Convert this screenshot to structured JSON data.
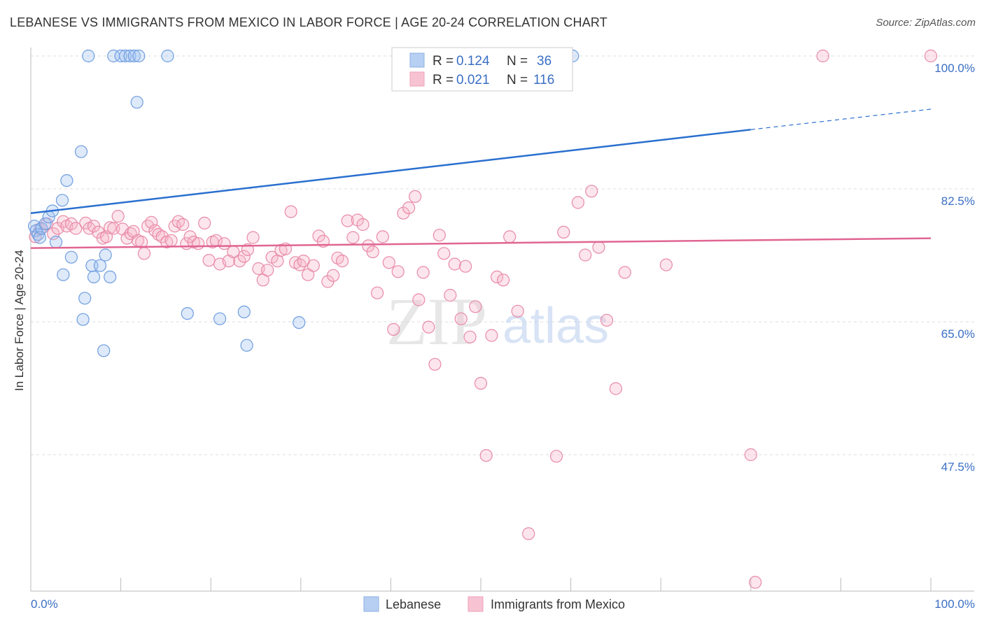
{
  "title": "LEBANESE VS IMMIGRANTS FROM MEXICO IN LABOR FORCE | AGE 20-24 CORRELATION CHART",
  "source": "Source: ZipAtlas.com",
  "watermark": {
    "zip": "ZIP",
    "atlas": "atlas"
  },
  "colors": {
    "lebanese": "#6f9de0",
    "lebanese_fill": "rgba(160,195,240,0.35)",
    "mexico": "#e88aa8",
    "mexico_fill": "rgba(245,180,200,0.35)",
    "lebanese_line": "#2a6fcf",
    "mexico_line": "#e06592",
    "grid": "#dddddd",
    "label": "#3a6fc4"
  },
  "legend": {
    "items": [
      {
        "r_label": "R =",
        "r_value": "0.124",
        "n_label": "N =",
        "n_value": "36"
      },
      {
        "r_label": "R =",
        "r_value": "0.021",
        "n_label": "N =",
        "n_value": "116"
      }
    ]
  },
  "bottom_legend": [
    "Lebanese",
    "Immigrants from Mexico"
  ],
  "chart_data": {
    "type": "scatter",
    "title": "LEBANESE VS IMMIGRANTS FROM MEXICO IN LABOR FORCE | AGE 20-24 CORRELATION CHART",
    "xlabel": "",
    "ylabel": "In Labor Force | Age 20-24",
    "xlim": [
      0,
      100
    ],
    "ylim": [
      29,
      102
    ],
    "x_ticks": [
      "0.0%",
      "100.0%"
    ],
    "y_ticks": [
      {
        "value": 100,
        "label": "100.0%"
      },
      {
        "value": 82.5,
        "label": "82.5%"
      },
      {
        "value": 65,
        "label": "65.0%"
      },
      {
        "value": 47.5,
        "label": "47.5%"
      }
    ],
    "grid": true,
    "series": [
      {
        "name": "Lebanese",
        "color": "#6f9de0",
        "trend": {
          "x0": 0,
          "y0": 79.3,
          "x1": 80,
          "y1": 90.3,
          "dashed_to_x": 100,
          "dashed_to_y": 93.0
        },
        "points": [
          [
            0.4,
            77.6
          ],
          [
            0.6,
            77.0
          ],
          [
            0.8,
            76.5
          ],
          [
            1.0,
            76.1
          ],
          [
            1.2,
            77.3
          ],
          [
            1.6,
            77.9
          ],
          [
            2.0,
            78.8
          ],
          [
            2.4,
            79.6
          ],
          [
            3.5,
            81.0
          ],
          [
            4.0,
            83.6
          ],
          [
            5.6,
            87.4
          ],
          [
            6.4,
            100
          ],
          [
            9.2,
            100
          ],
          [
            10.0,
            100
          ],
          [
            10.5,
            100
          ],
          [
            11.0,
            100
          ],
          [
            11.5,
            100
          ],
          [
            12.0,
            100
          ],
          [
            15.2,
            100
          ],
          [
            11.8,
            93.9
          ],
          [
            2.8,
            75.5
          ],
          [
            4.5,
            73.5
          ],
          [
            3.6,
            71.2
          ],
          [
            6.8,
            72.4
          ],
          [
            7.7,
            72.4
          ],
          [
            8.3,
            73.8
          ],
          [
            7.0,
            70.9
          ],
          [
            6.0,
            68.1
          ],
          [
            8.8,
            70.9
          ],
          [
            5.8,
            65.3
          ],
          [
            8.1,
            61.2
          ],
          [
            17.4,
            66.1
          ],
          [
            21.0,
            65.4
          ],
          [
            23.7,
            66.3
          ],
          [
            24.0,
            61.9
          ],
          [
            29.8,
            64.9
          ],
          [
            60.2,
            100
          ]
        ]
      },
      {
        "name": "Immigrants from Mexico",
        "color": "#e88aa8",
        "trend": {
          "x0": 0,
          "y0": 74.7,
          "x1": 100,
          "y1": 76.0
        },
        "points": [
          [
            0.5,
            76.2
          ],
          [
            1.0,
            77.2
          ],
          [
            1.8,
            77.9
          ],
          [
            2.5,
            76.6
          ],
          [
            3.0,
            77.3
          ],
          [
            3.6,
            78.2
          ],
          [
            4.0,
            77.6
          ],
          [
            4.5,
            77.9
          ],
          [
            5.0,
            77.3
          ],
          [
            6.1,
            78.0
          ],
          [
            6.5,
            77.3
          ],
          [
            7.0,
            77.6
          ],
          [
            7.5,
            76.8
          ],
          [
            8.0,
            76.0
          ],
          [
            8.4,
            76.2
          ],
          [
            8.8,
            77.4
          ],
          [
            9.2,
            77.3
          ],
          [
            9.7,
            78.9
          ],
          [
            10.2,
            77.2
          ],
          [
            10.7,
            76.0
          ],
          [
            11.1,
            76.6
          ],
          [
            11.4,
            76.9
          ],
          [
            11.9,
            75.7
          ],
          [
            12.3,
            75.5
          ],
          [
            12.6,
            74.0
          ],
          [
            13.0,
            77.6
          ],
          [
            13.4,
            78.1
          ],
          [
            13.8,
            77.0
          ],
          [
            14.2,
            76.5
          ],
          [
            14.6,
            76.2
          ],
          [
            15.1,
            75.5
          ],
          [
            15.6,
            75.7
          ],
          [
            16.0,
            77.6
          ],
          [
            16.4,
            78.2
          ],
          [
            16.9,
            77.8
          ],
          [
            17.3,
            75.3
          ],
          [
            17.7,
            76.2
          ],
          [
            18.1,
            75.5
          ],
          [
            18.6,
            75.3
          ],
          [
            19.3,
            78.0
          ],
          [
            19.8,
            73.1
          ],
          [
            20.2,
            75.5
          ],
          [
            20.6,
            75.7
          ],
          [
            21.0,
            72.6
          ],
          [
            21.5,
            75.3
          ],
          [
            22.0,
            73.0
          ],
          [
            22.5,
            74.2
          ],
          [
            23.2,
            73.0
          ],
          [
            23.7,
            73.6
          ],
          [
            24.1,
            74.5
          ],
          [
            24.7,
            76.1
          ],
          [
            25.3,
            72.0
          ],
          [
            25.8,
            70.5
          ],
          [
            26.3,
            71.8
          ],
          [
            26.8,
            73.5
          ],
          [
            27.4,
            73.0
          ],
          [
            27.8,
            74.4
          ],
          [
            28.3,
            74.6
          ],
          [
            28.9,
            79.5
          ],
          [
            29.4,
            72.8
          ],
          [
            29.9,
            72.5
          ],
          [
            30.3,
            73.0
          ],
          [
            30.8,
            71.2
          ],
          [
            31.4,
            72.4
          ],
          [
            32.0,
            76.3
          ],
          [
            32.5,
            75.6
          ],
          [
            33.0,
            70.3
          ],
          [
            33.6,
            71.1
          ],
          [
            34.1,
            73.4
          ],
          [
            34.6,
            73.0
          ],
          [
            35.2,
            78.3
          ],
          [
            35.8,
            76.1
          ],
          [
            36.3,
            78.4
          ],
          [
            36.9,
            77.8
          ],
          [
            37.5,
            75.0
          ],
          [
            38.0,
            74.2
          ],
          [
            38.5,
            68.8
          ],
          [
            39.1,
            76.2
          ],
          [
            39.8,
            72.8
          ],
          [
            40.3,
            64.0
          ],
          [
            40.8,
            71.6
          ],
          [
            41.4,
            79.3
          ],
          [
            42.0,
            80.0
          ],
          [
            42.7,
            81.5
          ],
          [
            43.1,
            67.9
          ],
          [
            43.6,
            71.5
          ],
          [
            44.2,
            64.3
          ],
          [
            44.9,
            59.4
          ],
          [
            45.4,
            76.4
          ],
          [
            45.9,
            74.0
          ],
          [
            46.6,
            68.5
          ],
          [
            47.1,
            72.6
          ],
          [
            47.8,
            65.4
          ],
          [
            48.3,
            72.3
          ],
          [
            48.8,
            63.0
          ],
          [
            49.4,
            67.0
          ],
          [
            50.0,
            56.9
          ],
          [
            50.6,
            47.4
          ],
          [
            51.2,
            63.2
          ],
          [
            51.8,
            70.9
          ],
          [
            52.5,
            70.5
          ],
          [
            53.2,
            76.2
          ],
          [
            54.1,
            66.4
          ],
          [
            55.3,
            37.1
          ],
          [
            58.4,
            47.3
          ],
          [
            59.2,
            76.8
          ],
          [
            60.8,
            80.7
          ],
          [
            61.6,
            73.8
          ],
          [
            62.3,
            82.2
          ],
          [
            64.0,
            65.2
          ],
          [
            65.0,
            56.2
          ],
          [
            66.0,
            71.5
          ],
          [
            70.6,
            72.5
          ],
          [
            80.0,
            47.5
          ],
          [
            88.0,
            100
          ],
          [
            100,
            100
          ],
          [
            80.5,
            30.7
          ],
          [
            63.1,
            74.8
          ]
        ]
      }
    ]
  }
}
